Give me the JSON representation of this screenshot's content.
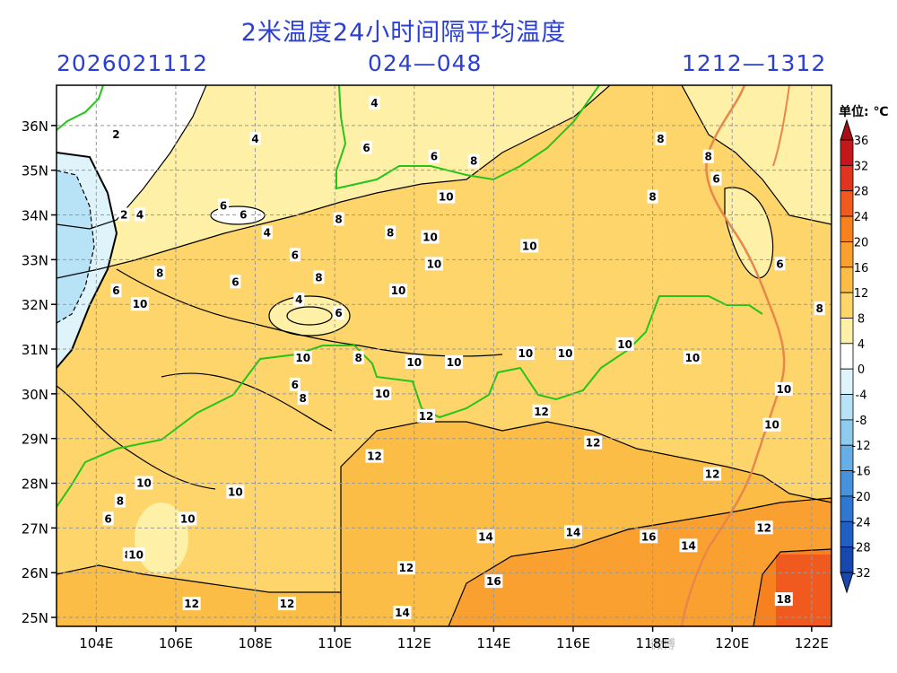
{
  "title": "2米温度24小时间隔平均温度",
  "run_time": "2026021112",
  "forecast_range": "024—048",
  "valid_range": "1212—1312",
  "unit_label": "单位: ℃",
  "watermark": "微博",
  "axes": {
    "lon_ticks": [
      "104E",
      "106E",
      "108E",
      "110E",
      "112E",
      "114E",
      "116E",
      "118E",
      "120E",
      "122E"
    ],
    "lat_ticks": [
      "36N",
      "35N",
      "34N",
      "33N",
      "32N",
      "31N",
      "30N",
      "29N",
      "28N",
      "27N",
      "26N",
      "25N"
    ],
    "lon_range": [
      103,
      122.5
    ],
    "lat_range": [
      24.8,
      36.9
    ]
  },
  "colorbar": {
    "labels": [
      "36",
      "32",
      "28",
      "24",
      "20",
      "16",
      "12",
      "8",
      "4",
      "0",
      "-4",
      "-8",
      "-12",
      "-16",
      "-20",
      "-24",
      "-28",
      "-32"
    ],
    "colors": [
      "#a50f15",
      "#c4171c",
      "#e0341e",
      "#f05a1e",
      "#f7801f",
      "#f9a030",
      "#fbbd45",
      "#fdd56a",
      "#fff0a8",
      "#ffffff",
      "#dff3fb",
      "#b8e2f5",
      "#8fcbef",
      "#66afe6",
      "#4792dc",
      "#2f78d1",
      "#2060c4",
      "#1748b0"
    ]
  },
  "contour_labels": [
    {
      "text": "2",
      "lon": 104.5,
      "lat": 35.8
    },
    {
      "text": "4",
      "lon": 108.0,
      "lat": 35.7
    },
    {
      "text": "4",
      "lon": 111.0,
      "lat": 36.5
    },
    {
      "text": "6",
      "lon": 110.8,
      "lat": 35.5
    },
    {
      "text": "6",
      "lon": 112.5,
      "lat": 35.3
    },
    {
      "text": "8",
      "lon": 113.5,
      "lat": 35.2
    },
    {
      "text": "8",
      "lon": 118.2,
      "lat": 35.7
    },
    {
      "text": "8",
      "lon": 119.4,
      "lat": 35.3
    },
    {
      "text": "6",
      "lon": 119.6,
      "lat": 34.8
    },
    {
      "text": "8",
      "lon": 118.0,
      "lat": 34.4
    },
    {
      "text": "10",
      "lon": 112.8,
      "lat": 34.4
    },
    {
      "text": "6",
      "lon": 107.2,
      "lat": 34.2
    },
    {
      "text": "2",
      "lon": 104.7,
      "lat": 34.0
    },
    {
      "text": "4",
      "lon": 105.1,
      "lat": 34.0
    },
    {
      "text": "6",
      "lon": 107.7,
      "lat": 34.0
    },
    {
      "text": "4",
      "lon": 108.3,
      "lat": 33.6
    },
    {
      "text": "8",
      "lon": 110.1,
      "lat": 33.9
    },
    {
      "text": "8",
      "lon": 111.4,
      "lat": 33.6
    },
    {
      "text": "10",
      "lon": 112.4,
      "lat": 33.5
    },
    {
      "text": "10",
      "lon": 114.9,
      "lat": 33.3
    },
    {
      "text": "6",
      "lon": 109.0,
      "lat": 33.1
    },
    {
      "text": "10",
      "lon": 112.5,
      "lat": 32.9
    },
    {
      "text": "8",
      "lon": 109.6,
      "lat": 32.6
    },
    {
      "text": "8",
      "lon": 105.6,
      "lat": 32.7
    },
    {
      "text": "6",
      "lon": 107.5,
      "lat": 32.5
    },
    {
      "text": "6",
      "lon": 121.2,
      "lat": 32.9
    },
    {
      "text": "10",
      "lon": 111.6,
      "lat": 32.3
    },
    {
      "text": "6",
      "lon": 104.5,
      "lat": 32.3
    },
    {
      "text": "10",
      "lon": 105.1,
      "lat": 32.0
    },
    {
      "text": "4",
      "lon": 109.1,
      "lat": 32.1
    },
    {
      "text": "6",
      "lon": 110.1,
      "lat": 31.8
    },
    {
      "text": "8",
      "lon": 122.2,
      "lat": 31.9
    },
    {
      "text": "10",
      "lon": 117.3,
      "lat": 31.1
    },
    {
      "text": "10",
      "lon": 109.2,
      "lat": 30.8
    },
    {
      "text": "8",
      "lon": 110.6,
      "lat": 30.8
    },
    {
      "text": "10",
      "lon": 113.0,
      "lat": 30.7
    },
    {
      "text": "10",
      "lon": 112.0,
      "lat": 30.7
    },
    {
      "text": "10",
      "lon": 114.8,
      "lat": 30.9
    },
    {
      "text": "10",
      "lon": 115.8,
      "lat": 30.9
    },
    {
      "text": "10",
      "lon": 119.0,
      "lat": 30.8
    },
    {
      "text": "6",
      "lon": 109.0,
      "lat": 30.2
    },
    {
      "text": "8",
      "lon": 109.2,
      "lat": 29.9
    },
    {
      "text": "10",
      "lon": 111.2,
      "lat": 30.0
    },
    {
      "text": "10",
      "lon": 121.3,
      "lat": 30.1
    },
    {
      "text": "12",
      "lon": 112.3,
      "lat": 29.5
    },
    {
      "text": "12",
      "lon": 115.2,
      "lat": 29.6
    },
    {
      "text": "10",
      "lon": 121.0,
      "lat": 29.3
    },
    {
      "text": "12",
      "lon": 116.5,
      "lat": 28.9
    },
    {
      "text": "12",
      "lon": 111.0,
      "lat": 28.6
    },
    {
      "text": "12",
      "lon": 119.5,
      "lat": 28.2
    },
    {
      "text": "10",
      "lon": 105.2,
      "lat": 28.0
    },
    {
      "text": "10",
      "lon": 107.5,
      "lat": 27.8
    },
    {
      "text": "8",
      "lon": 104.6,
      "lat": 27.6
    },
    {
      "text": "6",
      "lon": 104.3,
      "lat": 27.2
    },
    {
      "text": "10",
      "lon": 106.3,
      "lat": 27.2
    },
    {
      "text": "14",
      "lon": 113.8,
      "lat": 26.8
    },
    {
      "text": "14",
      "lon": 116.0,
      "lat": 26.9
    },
    {
      "text": "16",
      "lon": 117.9,
      "lat": 26.8
    },
    {
      "text": "14",
      "lon": 118.9,
      "lat": 26.6
    },
    {
      "text": "12",
      "lon": 120.8,
      "lat": 27.0
    },
    {
      "text": "8",
      "lon": 104.8,
      "lat": 26.4
    },
    {
      "text": "10",
      "lon": 105.0,
      "lat": 26.4
    },
    {
      "text": "12",
      "lon": 111.8,
      "lat": 26.1
    },
    {
      "text": "16",
      "lon": 114.0,
      "lat": 25.8
    },
    {
      "text": "12",
      "lon": 106.4,
      "lat": 25.3
    },
    {
      "text": "12",
      "lon": 108.8,
      "lat": 25.3
    },
    {
      "text": "14",
      "lon": 111.7,
      "lat": 25.1
    },
    {
      "text": "18",
      "lon": 121.3,
      "lat": 25.4
    }
  ]
}
